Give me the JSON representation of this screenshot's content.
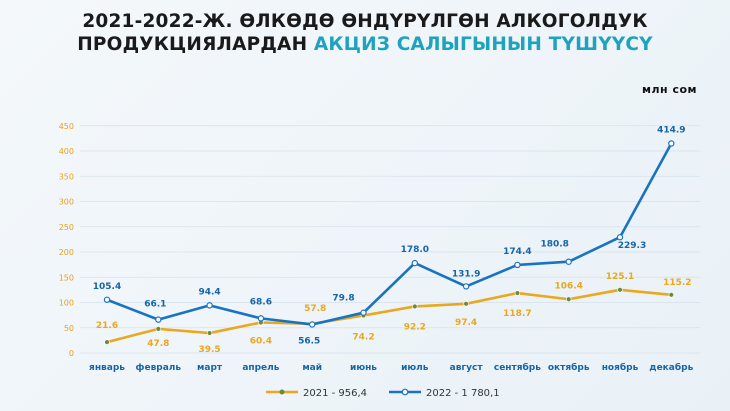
{
  "title_line1": "2021-2022-Ж. ӨЛКӨДӨ ӨНДҮРҮЛГӨН АЛКОГОЛДУК",
  "title_line2_a": "ПРОДУКЦИЯЛАРДАН ",
  "title_line2_b": "АКЦИЗ САЛЫГЫНЫН ТҮШҮҮСҮ",
  "colors": {
    "series_2021": "#e9a81e",
    "series_2022": "#1a73c1",
    "accent": "#1ea3bf"
  },
  "chart_data": {
    "type": "line",
    "unit": "млн сом",
    "categories": [
      "январь",
      "февраль",
      "март",
      "апрель",
      "май",
      "июнь",
      "июль",
      "август",
      "сентябрь",
      "октябрь",
      "ноябрь",
      "декабрь"
    ],
    "ylim": [
      0,
      450
    ],
    "yticks": [
      0,
      50,
      100,
      150,
      200,
      250,
      300,
      350,
      400,
      450
    ],
    "grid": true,
    "legend_position": "bottom",
    "series": [
      {
        "name": "2021 - 956,4",
        "values": [
          21.6,
          47.8,
          39.5,
          60.4,
          57.8,
          74.2,
          92.2,
          97.4,
          118.7,
          106.4,
          125.1,
          115.2
        ],
        "labels": [
          "21.6",
          "47.8",
          "39.5",
          "60.4",
          "57.8",
          "74.2",
          "92.2",
          "97.4",
          "118.7",
          "106.4",
          "125.1",
          "115.2"
        ]
      },
      {
        "name": "2022 - 1 780,1",
        "values": [
          105.4,
          66.1,
          94.4,
          68.6,
          56.5,
          79.8,
          178.0,
          131.9,
          174.4,
          180.8,
          229.3,
          414.9
        ],
        "labels": [
          "105.4",
          "66.1",
          "94.4",
          "68.6",
          "56.5",
          "79.8",
          "178.0",
          "131.9",
          "174.4",
          "180.8",
          "229.3",
          "414.9"
        ]
      }
    ]
  }
}
